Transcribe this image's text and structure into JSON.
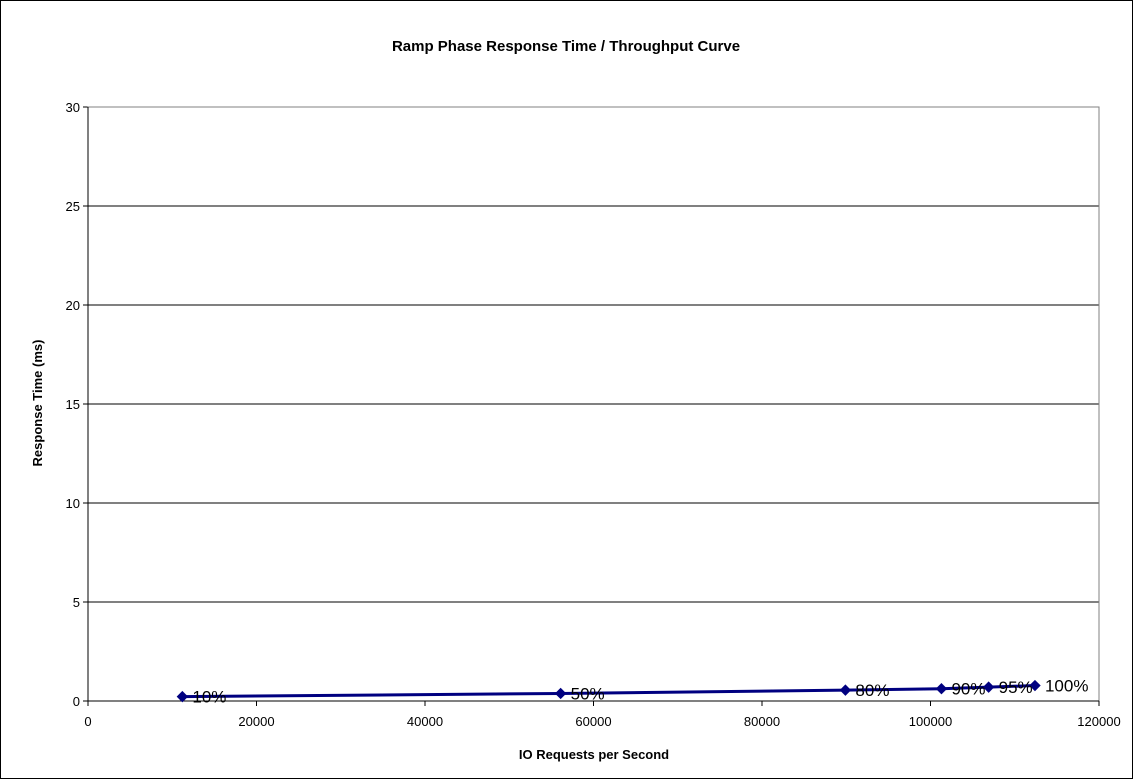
{
  "chart_data": {
    "type": "line",
    "title": "Ramp Phase Response Time / Throughput Curve",
    "xlabel": "IO Requests per Second",
    "ylabel": "Response Time (ms)",
    "xlim": [
      0,
      120000
    ],
    "ylim": [
      0,
      30
    ],
    "x_ticks": [
      "0",
      "20000",
      "40000",
      "60000",
      "80000",
      "100000",
      "120000"
    ],
    "y_ticks": [
      "0",
      "5",
      "10",
      "15",
      "20",
      "25",
      "30"
    ],
    "grid": "horizontal",
    "series": [
      {
        "color": "#000080",
        "points": [
          {
            "x": 11200,
            "y": 0.22,
            "label": "10%"
          },
          {
            "x": 56100,
            "y": 0.38,
            "label": "50%"
          },
          {
            "x": 89900,
            "y": 0.55,
            "label": "80%"
          },
          {
            "x": 101300,
            "y": 0.62,
            "label": "90%"
          },
          {
            "x": 106900,
            "y": 0.7,
            "label": "95%"
          },
          {
            "x": 112400,
            "y": 0.78,
            "label": "100%"
          }
        ]
      }
    ]
  }
}
